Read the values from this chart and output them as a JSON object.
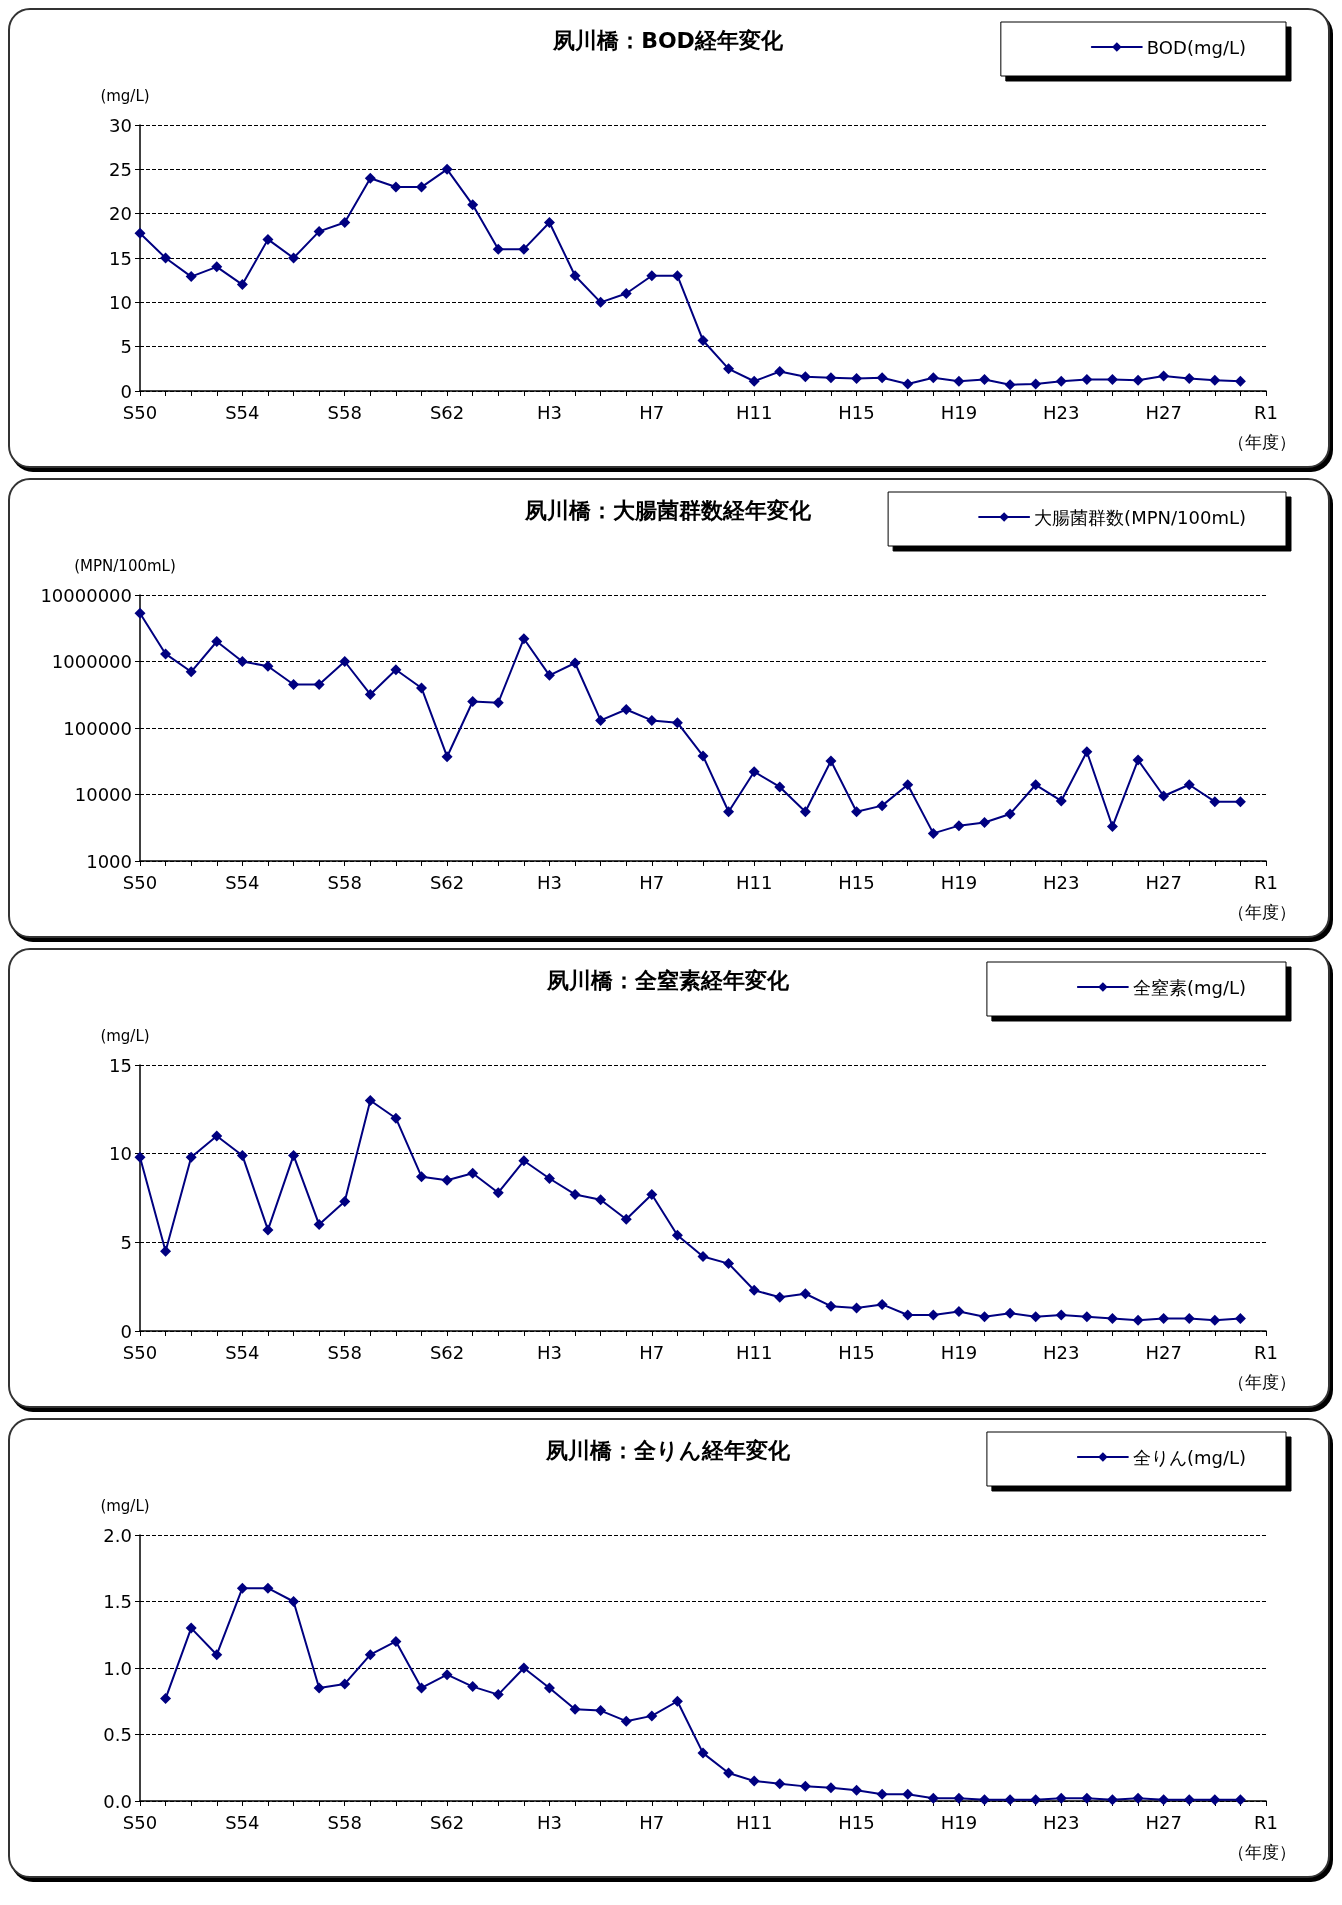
{
  "chart_data": [
    {
      "type": "line",
      "title": "夙川橋：BOD経年変化",
      "ylabel": "(mg/L)",
      "xlabel": "（年度）",
      "categories": [
        "S50",
        null,
        null,
        null,
        "S54",
        null,
        null,
        null,
        "S58",
        null,
        null,
        null,
        "S62",
        null,
        null,
        null,
        "H3",
        null,
        null,
        null,
        "H7",
        null,
        null,
        null,
        "H11",
        null,
        null,
        null,
        "H15",
        null,
        null,
        null,
        "H19",
        null,
        null,
        null,
        "H23",
        null,
        null,
        null,
        "H27",
        null,
        null,
        null,
        "R1"
      ],
      "series": [
        {
          "name": "BOD(mg/L)",
          "color": "#000080",
          "values": [
            17.8,
            15,
            12.9,
            14,
            12,
            17.1,
            15,
            18,
            19,
            24,
            23,
            23,
            25,
            21,
            16,
            16,
            19,
            13,
            10,
            11,
            13,
            13,
            5.7,
            2.5,
            1.1,
            2.2,
            1.6,
            1.5,
            1.4,
            1.5,
            0.8,
            1.5,
            1.1,
            1.3,
            0.7,
            0.8,
            1.1,
            1.3,
            1.3,
            1.2,
            1.7,
            1.4,
            1.2,
            1.1,
            null
          ]
        }
      ],
      "ylim": [
        0,
        30
      ],
      "yticks": [
        0,
        5,
        10,
        15,
        20,
        25,
        30
      ],
      "grid": "y",
      "legend": "top right",
      "marker": "diamond",
      "line_style": "solid"
    },
    {
      "type": "line",
      "title": "夙川橋：大腸菌群数経年変化",
      "ylabel": "(MPN/100mL)",
      "xlabel": "（年度）",
      "categories": [
        "S50",
        null,
        null,
        null,
        "S54",
        null,
        null,
        null,
        "S58",
        null,
        null,
        null,
        "S62",
        null,
        null,
        null,
        "H3",
        null,
        null,
        null,
        "H7",
        null,
        null,
        null,
        "H11",
        null,
        null,
        null,
        "H15",
        null,
        null,
        null,
        "H19",
        null,
        null,
        null,
        "H23",
        null,
        null,
        null,
        "H27",
        null,
        null,
        null,
        "R1"
      ],
      "series": [
        {
          "name": "大腸菌群数(MPN/100mL)",
          "color": "#000080",
          "values": [
            5300000,
            1300000,
            700000,
            2000000,
            1000000,
            850000,
            450000,
            450000,
            1000000,
            320000,
            750000,
            400000,
            37000,
            250000,
            240000,
            2200000,
            620000,
            950000,
            130000,
            190000,
            130000,
            120000,
            38000,
            5500,
            22000,
            13000,
            5500,
            32000,
            5500,
            6800,
            14000,
            2600,
            3400,
            3800,
            5100,
            14000,
            8000,
            44000,
            3300,
            33000,
            9500,
            14000,
            7800,
            7800,
            null
          ]
        }
      ],
      "ylim": [
        1000,
        10000000
      ],
      "yticks": [
        1000,
        10000,
        100000,
        1000000,
        10000000
      ],
      "log": "y",
      "grid": "y",
      "legend": "top right",
      "marker": "diamond",
      "line_style": "solid"
    },
    {
      "type": "line",
      "title": "夙川橋：全窒素経年変化",
      "ylabel": "(mg/L)",
      "xlabel": "（年度）",
      "categories": [
        "S50",
        null,
        null,
        null,
        "S54",
        null,
        null,
        null,
        "S58",
        null,
        null,
        null,
        "S62",
        null,
        null,
        null,
        "H3",
        null,
        null,
        null,
        "H7",
        null,
        null,
        null,
        "H11",
        null,
        null,
        null,
        "H15",
        null,
        null,
        null,
        "H19",
        null,
        null,
        null,
        "H23",
        null,
        null,
        null,
        "H27",
        null,
        null,
        null,
        "R1"
      ],
      "series": [
        {
          "name": "全窒素(mg/L)",
          "color": "#000080",
          "values": [
            9.8,
            4.5,
            9.8,
            11,
            9.9,
            5.7,
            9.9,
            6.0,
            7.3,
            13,
            12,
            8.7,
            8.5,
            8.9,
            7.8,
            9.6,
            8.6,
            7.7,
            7.4,
            6.3,
            7.7,
            5.4,
            4.2,
            3.8,
            2.3,
            1.9,
            2.1,
            1.4,
            1.3,
            1.5,
            0.9,
            0.9,
            1.1,
            0.8,
            1.0,
            0.8,
            0.9,
            0.8,
            0.7,
            0.6,
            0.7,
            0.7,
            0.6,
            0.7,
            null
          ]
        }
      ],
      "ylim": [
        0,
        15
      ],
      "yticks": [
        0,
        5,
        10,
        15
      ],
      "grid": "y",
      "legend": "top right",
      "marker": "diamond",
      "line_style": "solid"
    },
    {
      "type": "line",
      "title": "夙川橋：全りん経年変化",
      "ylabel": "(mg/L)",
      "xlabel": "（年度）",
      "categories": [
        "S50",
        null,
        null,
        null,
        "S54",
        null,
        null,
        null,
        "S58",
        null,
        null,
        null,
        "S62",
        null,
        null,
        null,
        "H3",
        null,
        null,
        null,
        "H7",
        null,
        null,
        null,
        "H11",
        null,
        null,
        null,
        "H15",
        null,
        null,
        null,
        "H19",
        null,
        null,
        null,
        "H23",
        null,
        null,
        null,
        "H27",
        null,
        null,
        null,
        "R1"
      ],
      "series": [
        {
          "name": "全りん(mg/L)",
          "color": "#000080",
          "values": [
            null,
            0.77,
            1.3,
            1.1,
            1.6,
            1.6,
            1.5,
            0.85,
            0.88,
            1.1,
            1.2,
            0.85,
            0.95,
            0.86,
            0.8,
            1.0,
            0.85,
            0.69,
            0.68,
            0.6,
            0.64,
            0.75,
            0.36,
            0.21,
            0.15,
            0.13,
            0.11,
            0.1,
            0.08,
            0.05,
            0.05,
            0.02,
            0.02,
            0.01,
            0.01,
            0.01,
            0.02,
            0.02,
            0.01,
            0.02,
            0.01,
            0.01,
            0.01,
            0.01,
            null
          ]
        }
      ],
      "ylim": [
        0,
        2
      ],
      "yticks": [
        {
          "value": 0,
          "label": "0.0"
        },
        {
          "value": 0.5,
          "label": "0.5"
        },
        {
          "value": 1,
          "label": "1.0"
        },
        {
          "value": 1.5,
          "label": "1.5"
        },
        {
          "value": 2,
          "label": "2.0"
        }
      ],
      "grid": "y",
      "legend": "top right",
      "marker": "diamond",
      "line_style": "solid"
    }
  ]
}
